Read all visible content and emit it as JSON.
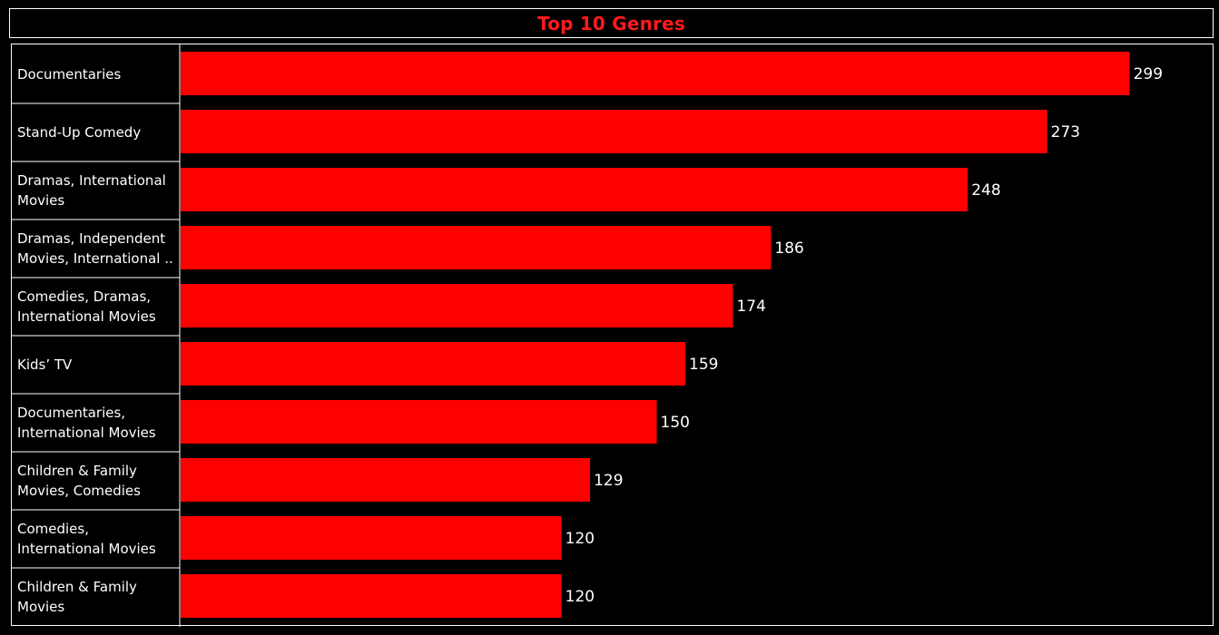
{
  "chart_data": {
    "type": "bar",
    "orientation": "horizontal",
    "title": "Top 10 Genres",
    "categories": [
      "Documentaries",
      "Stand-Up Comedy",
      "Dramas, International Movies",
      "Dramas, Independent Movies, International ..",
      "Comedies, Dramas, International Movies",
      "Kids’ TV",
      "Documentaries, International Movies",
      "Children & Family Movies, Comedies",
      "Comedies, International Movies",
      "Children & Family Movies"
    ],
    "category_label_lines": [
      [
        "Documentaries"
      ],
      [
        "Stand-Up Comedy"
      ],
      [
        "Dramas, International",
        "Movies"
      ],
      [
        "Dramas, Independent",
        "Movies, International .."
      ],
      [
        "Comedies, Dramas,",
        "International Movies"
      ],
      [
        "Kids’ TV"
      ],
      [
        "Documentaries,",
        "International Movies"
      ],
      [
        "Children & Family",
        "Movies, Comedies"
      ],
      [
        "Comedies,",
        "International Movies"
      ],
      [
        "Children & Family",
        "Movies"
      ]
    ],
    "values": [
      299,
      273,
      248,
      186,
      174,
      159,
      150,
      129,
      120,
      120
    ],
    "xlim": [
      0,
      326
    ],
    "grid": false,
    "legend": "none",
    "bar_color": "#ff0000",
    "title_color": "#ff1a1a",
    "label_color": "#ffffff",
    "background_color": "#000000"
  }
}
